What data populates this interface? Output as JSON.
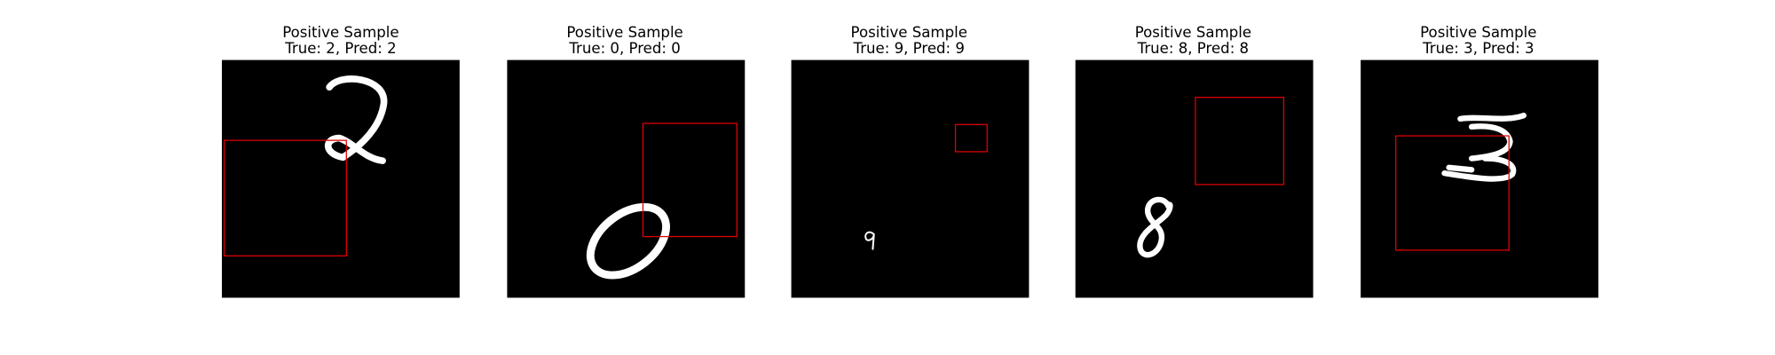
{
  "panels": [
    {
      "title": "Positive Sample",
      "label": "True: 2, Pred: 2"
    },
    {
      "title": "Positive Sample",
      "label": "True: 0, Pred: 0"
    },
    {
      "title": "Positive Sample",
      "label": "True: 9, Pred: 9"
    },
    {
      "title": "Positive Sample",
      "label": "True: 8, Pred: 8"
    },
    {
      "title": "Positive Sample",
      "label": "True: 3, Pred: 3"
    }
  ]
}
